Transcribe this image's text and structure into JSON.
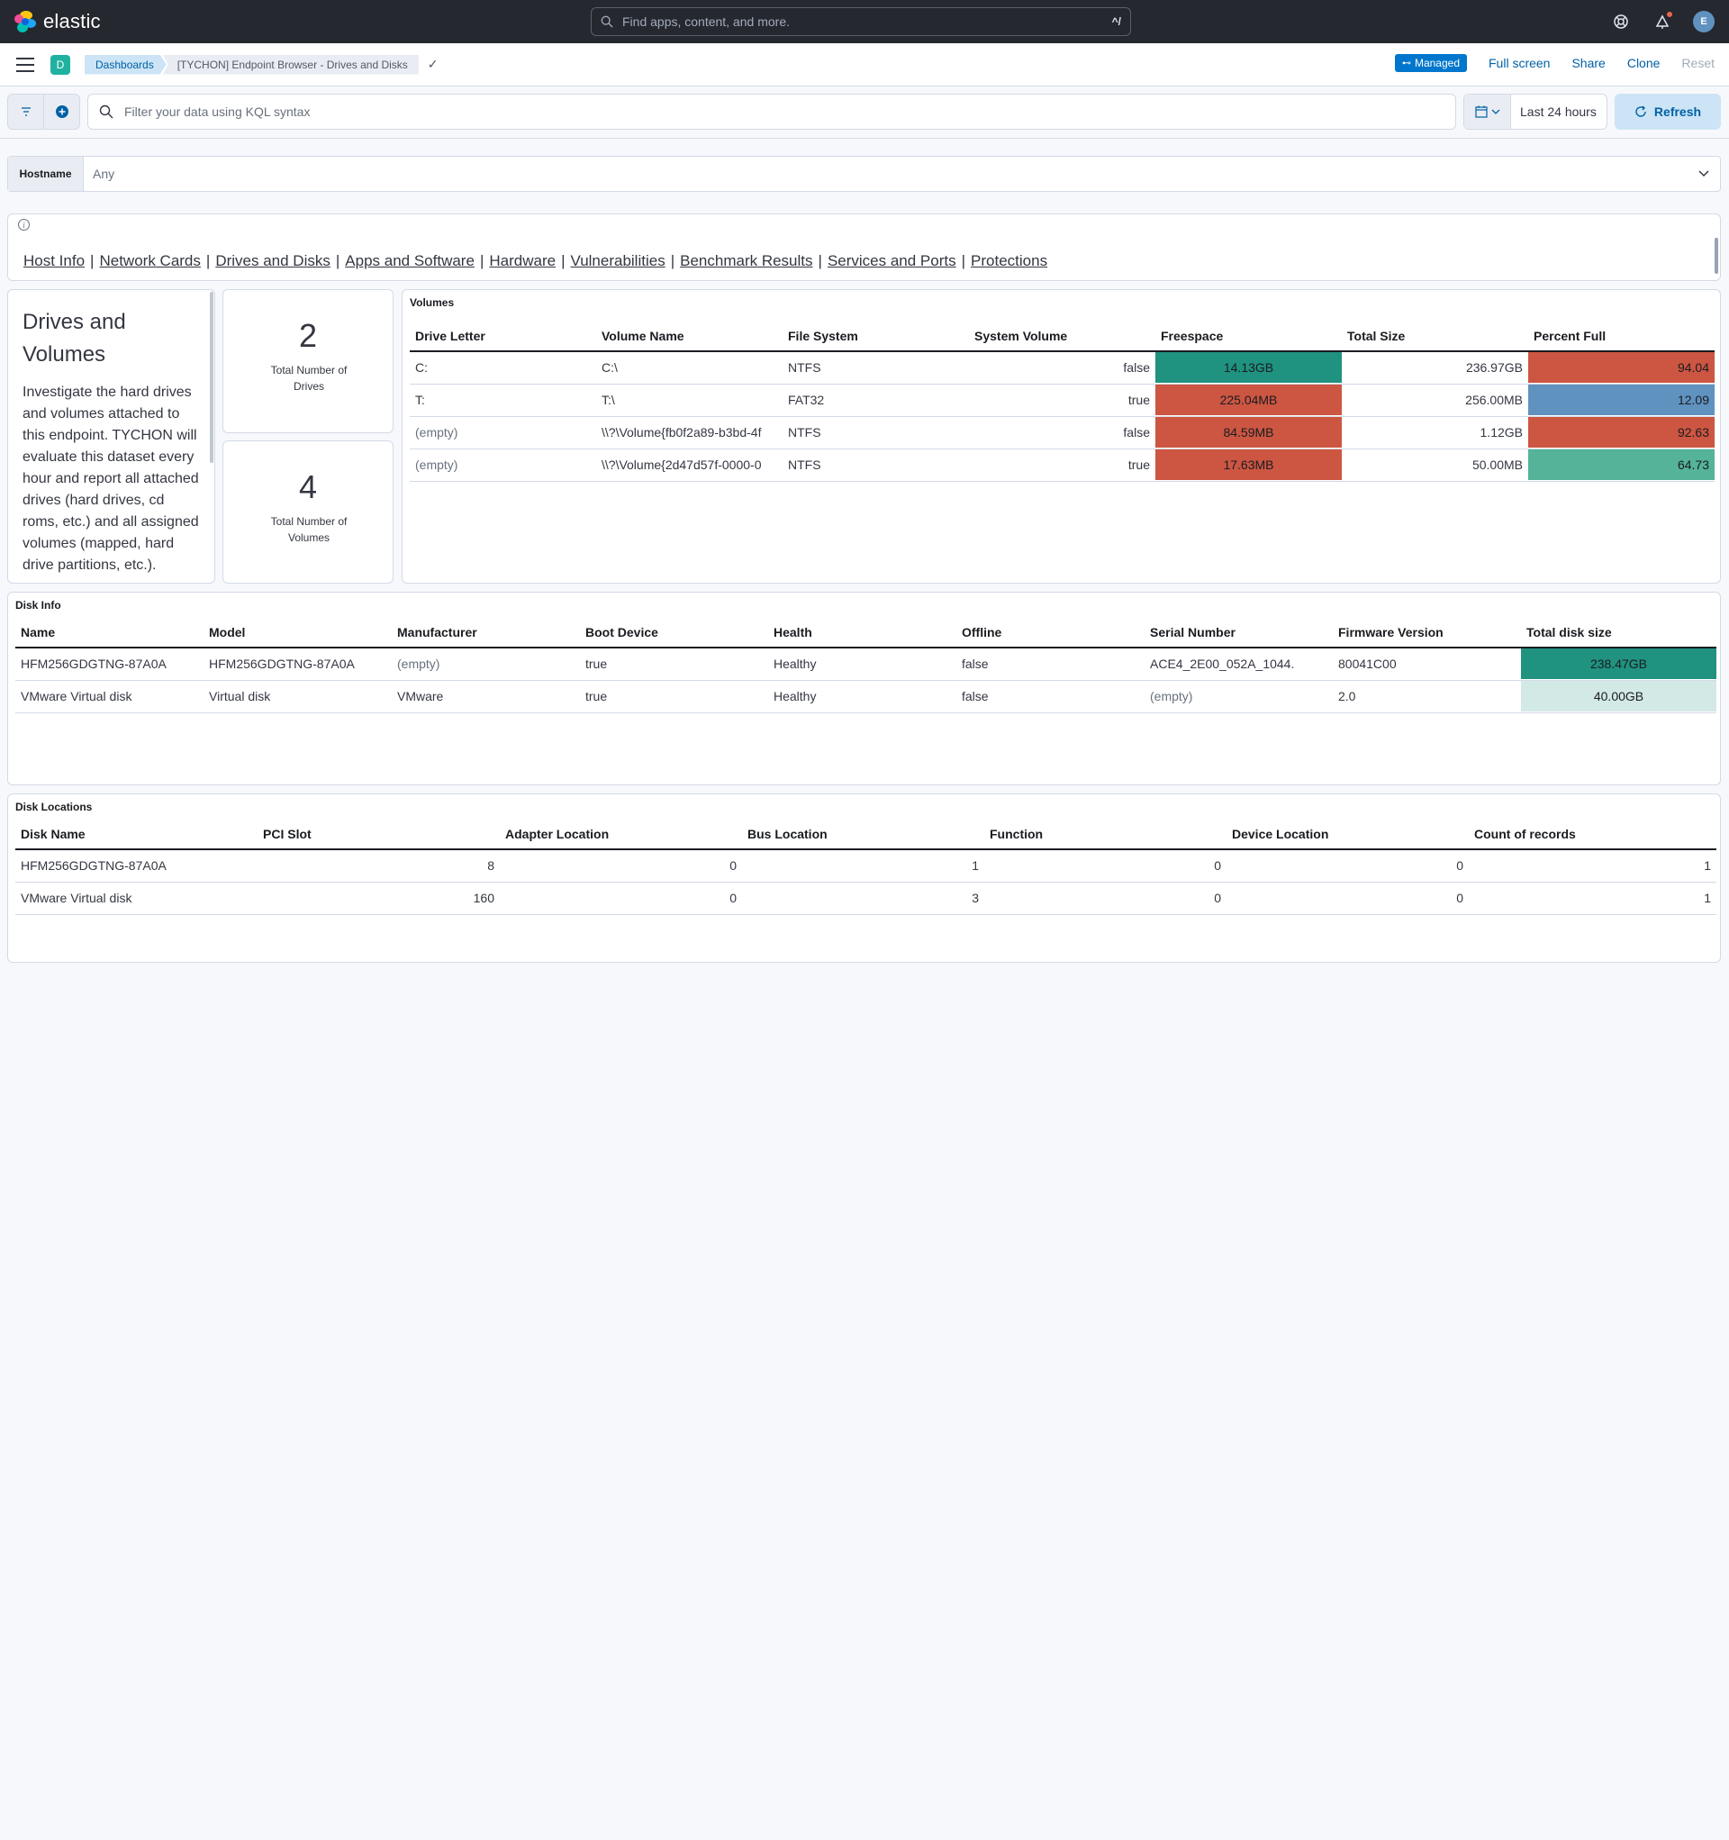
{
  "app": {
    "name": "elastic",
    "search_placeholder": "Find apps, content, and more.",
    "search_shortcut": "^/",
    "avatar_initial": "E"
  },
  "breadcrumb": {
    "space": "D",
    "items": [
      "Dashboards",
      "[TYCHON] Endpoint Browser - Drives and Disks"
    ]
  },
  "actions": {
    "managed": "Managed",
    "full_screen": "Full screen",
    "share": "Share",
    "clone": "Clone",
    "reset": "Reset"
  },
  "query": {
    "placeholder": "Filter your data using KQL syntax",
    "time_range": "Last 24 hours",
    "refresh": "Refresh"
  },
  "control": {
    "label": "Hostname",
    "value": "Any"
  },
  "nav_links": [
    "Host Info",
    "Network Cards",
    "Drives and Disks",
    "Apps and Software",
    "Hardware",
    "Vulnerabilities",
    "Benchmark Results",
    "Services and Ports",
    "Protections"
  ],
  "description": {
    "title": "Drives and Volumes",
    "body": "Investigate the hard drives and volumes attached to this endpoint. TYCHON will evaluate this dataset every hour and report all attached drives (hard drives, cd roms, etc.) and all assigned volumes (mapped, hard drive partitions, etc.)."
  },
  "metrics": [
    {
      "value": "2",
      "label": "Total Number of Drives"
    },
    {
      "value": "4",
      "label": "Total Number of Volumes"
    }
  ],
  "volumes": {
    "title": "Volumes",
    "columns": [
      "Drive Letter",
      "Volume Name",
      "File System",
      "System Volume",
      "Freespace",
      "Total Size",
      "Percent Full"
    ],
    "rows": [
      [
        "C:",
        "C:\\",
        "NTFS",
        "false",
        "14.13GB",
        "236.97GB",
        "94.04"
      ],
      [
        "T:",
        "T:\\",
        "FAT32",
        "true",
        "225.04MB",
        "256.00MB",
        "12.09"
      ],
      [
        "(empty)",
        "\\\\?\\Volume{fb0f2a89-b3bd-4f",
        "NTFS",
        "false",
        "84.59MB",
        "1.12GB",
        "92.63"
      ],
      [
        "(empty)",
        "\\\\?\\Volume{2d47d57f-0000-0",
        "NTFS",
        "true",
        "17.63MB",
        "50.00MB",
        "64.73"
      ]
    ],
    "freespace_colors": [
      "#209280",
      "#cc5642",
      "#cc5642",
      "#cc5642"
    ],
    "percent_colors": [
      "#cc5642",
      "#6092c0",
      "#cc5642",
      "#54b399"
    ]
  },
  "disk_info": {
    "title": "Disk Info",
    "columns": [
      "Name",
      "Model",
      "Manufacturer",
      "Boot Device",
      "Health",
      "Offline",
      "Serial Number",
      "Firmware Version",
      "Total disk size"
    ],
    "rows": [
      [
        "HFM256GDGTNG-87A0A",
        "HFM256GDGTNG-87A0A",
        "(empty)",
        "true",
        "Healthy",
        "false",
        "ACE4_2E00_052A_1044.",
        "80041C00",
        "238.47GB"
      ],
      [
        "VMware Virtual disk",
        "Virtual disk",
        "VMware",
        "true",
        "Healthy",
        "false",
        "(empty)",
        "2.0",
        "40.00GB"
      ]
    ],
    "size_colors": [
      "#209280",
      "#d2e9e5"
    ]
  },
  "disk_locations": {
    "title": "Disk Locations",
    "columns": [
      "Disk Name",
      "PCI Slot",
      "Adapter Location",
      "Bus Location",
      "Function",
      "Device Location",
      "Count of records"
    ],
    "rows": [
      [
        "HFM256GDGTNG-87A0A",
        "8",
        "0",
        "1",
        "0",
        "0",
        "1"
      ],
      [
        "VMware Virtual disk",
        "160",
        "0",
        "3",
        "0",
        "0",
        "1"
      ]
    ]
  }
}
